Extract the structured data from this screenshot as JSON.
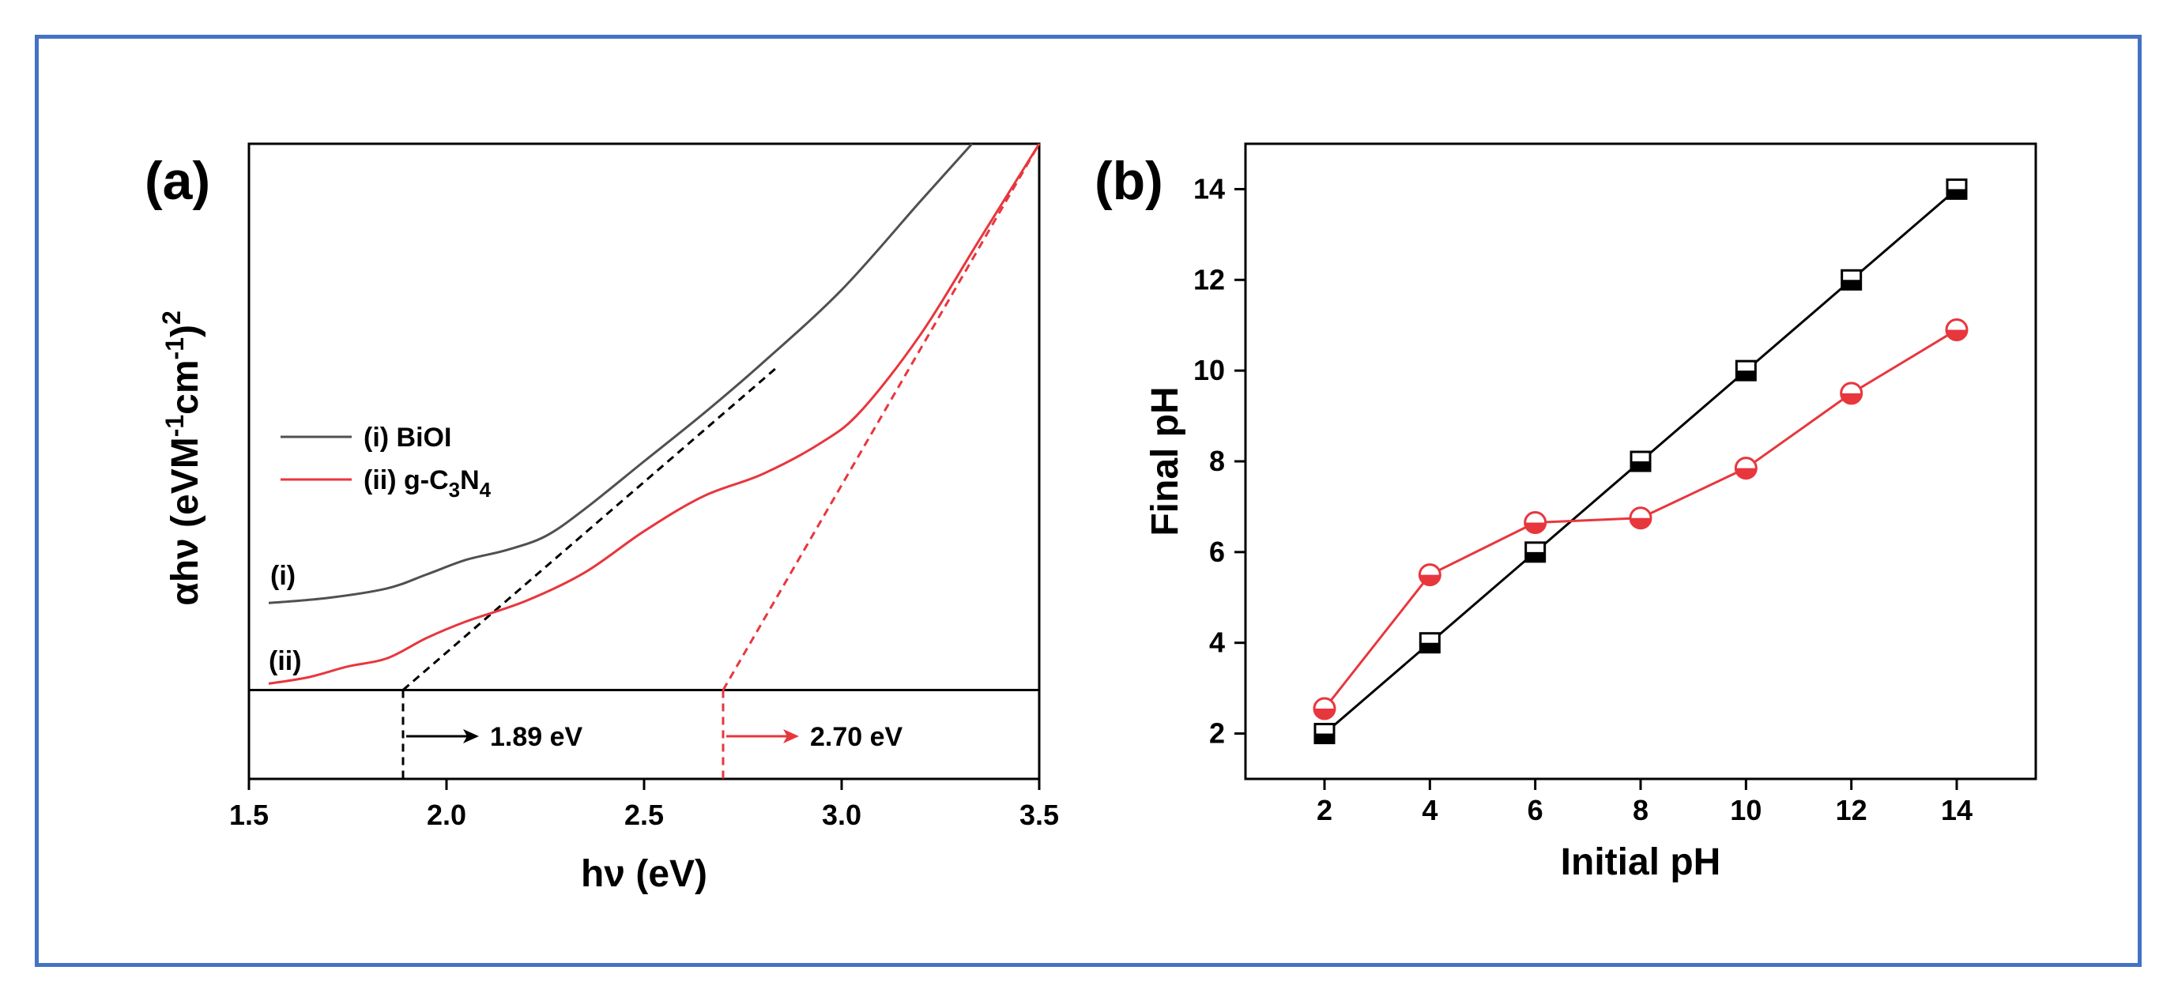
{
  "chart_data": [
    {
      "type": "line",
      "panel_label": "(a)",
      "xlabel": "hν (eV)",
      "ylabel": "αhν (eVM-1cm-1)2",
      "ylabel_parts": {
        "base": "αhν (eVM",
        "sup1": "-1",
        "mid": "cm",
        "sup2": "-1",
        "close": ")",
        "sup3": "2"
      },
      "xlim": [
        1.5,
        3.5
      ],
      "ylim": [
        0,
        1
      ],
      "x_ticks": [
        "1.5",
        "2.0",
        "2.5",
        "3.0",
        "3.5"
      ],
      "x_tick_values": [
        1.5,
        2.0,
        2.5,
        3.0,
        3.5
      ],
      "baseline_y": 0.14,
      "series": [
        {
          "name": "(i) BiOI",
          "label": "(i)",
          "color": "#505050",
          "x": [
            1.55,
            1.7,
            1.85,
            1.95,
            2.05,
            2.15,
            2.25,
            2.35,
            2.5,
            2.65,
            2.8,
            3.0,
            3.2,
            3.33
          ],
          "y": [
            0.277,
            0.285,
            0.3,
            0.322,
            0.345,
            0.36,
            0.382,
            0.425,
            0.5,
            0.575,
            0.655,
            0.77,
            0.91,
            1.0
          ]
        },
        {
          "name": "(ii) g-C3N4",
          "label": "(ii)",
          "color": "#e8363d",
          "legend_parts": {
            "pre": "(ii) g-C",
            "sub1": "3",
            "mid": "N",
            "sub2": "4"
          },
          "x": [
            1.55,
            1.65,
            1.75,
            1.85,
            1.95,
            2.05,
            2.2,
            2.35,
            2.5,
            2.65,
            2.8,
            2.95,
            3.05,
            3.2,
            3.35,
            3.5
          ],
          "y": [
            0.15,
            0.16,
            0.177,
            0.19,
            0.222,
            0.248,
            0.28,
            0.325,
            0.39,
            0.445,
            0.48,
            0.53,
            0.58,
            0.7,
            0.85,
            1.0
          ]
        }
      ],
      "tangents": [
        {
          "color": "#000000",
          "from": [
            1.89,
            0.14
          ],
          "to": [
            2.84,
            0.65
          ]
        },
        {
          "color": "#e8363d",
          "from": [
            2.7,
            0.14
          ],
          "to": [
            3.5,
            1.0
          ]
        }
      ],
      "annotations": [
        {
          "text": "1.89 eV",
          "x": 1.89,
          "color": "#000000"
        },
        {
          "text": "2.70 eV",
          "x": 2.7,
          "color": "#e8363d"
        }
      ]
    },
    {
      "type": "line",
      "panel_label": "(b)",
      "xlabel": "Initial pH",
      "ylabel": "Final pH",
      "xlim": [
        0.5,
        15.5
      ],
      "ylim": [
        1,
        15
      ],
      "x_ticks": [
        "2",
        "4",
        "6",
        "8",
        "10",
        "12",
        "14"
      ],
      "x_tick_values": [
        2,
        4,
        6,
        8,
        10,
        12,
        14
      ],
      "y_ticks": [
        "2",
        "4",
        "6",
        "8",
        "10",
        "12",
        "14"
      ],
      "y_tick_values": [
        2,
        4,
        6,
        8,
        10,
        12,
        14
      ],
      "series": [
        {
          "name": "black-squares",
          "marker": "square",
          "color": "#000000",
          "x": [
            2,
            4,
            6,
            8,
            10,
            12,
            14
          ],
          "y": [
            2.0,
            4.0,
            6.0,
            8.0,
            10.0,
            12.0,
            14.0
          ]
        },
        {
          "name": "red-circles",
          "marker": "circle",
          "color": "#e8363d",
          "x": [
            2,
            4,
            6,
            8,
            10,
            12,
            14
          ],
          "y": [
            2.55,
            5.5,
            6.65,
            6.75,
            7.85,
            9.5,
            10.9
          ]
        }
      ]
    }
  ]
}
